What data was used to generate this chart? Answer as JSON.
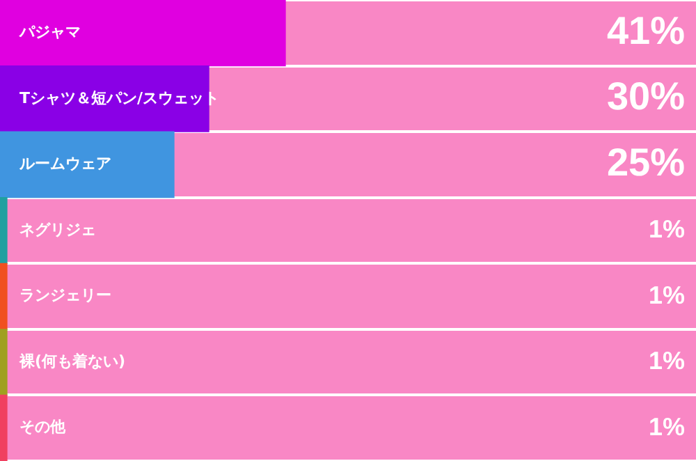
{
  "chart_data": {
    "type": "bar",
    "orientation": "horizontal",
    "categories": [
      "パジャマ",
      "Tシャツ＆短パン/スウェット",
      "ルームウェア",
      "ネグリジェ",
      "ランジェリー",
      "裸(何も着ない)",
      "その他"
    ],
    "values": [
      41,
      30,
      25,
      1,
      1,
      1,
      1
    ],
    "colors": [
      "#e000e0",
      "#8a00e6",
      "#4095e0",
      "#20a0a0",
      "#f05020",
      "#a0a020",
      "#f04060"
    ],
    "value_labels": [
      "41%",
      "30%",
      "25%",
      "1%",
      "1%",
      "1%",
      "1%"
    ],
    "xlim": [
      0,
      100
    ],
    "grid": "y",
    "legend": false
  }
}
